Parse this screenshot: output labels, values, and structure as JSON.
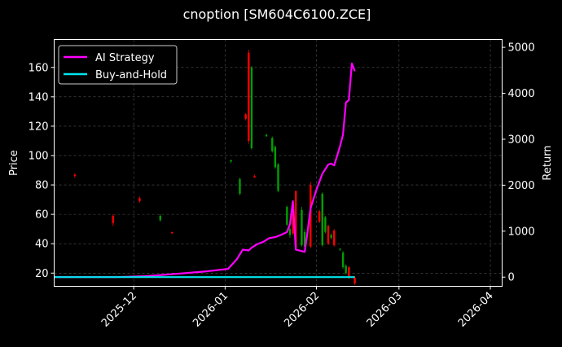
{
  "chart_data": {
    "type": "line",
    "title": "cnoption [SM604C6100.ZCE]",
    "xlabel": "",
    "ylabel": "Price",
    "y2label": "Return",
    "x_ticks": [
      "2025-12",
      "2026-01",
      "2026-02",
      "2026-03",
      "2026-04"
    ],
    "xlim": [
      "2025-11-04",
      "2026-04-05"
    ],
    "ylim": [
      11,
      179
    ],
    "y_ticks": [
      20,
      40,
      60,
      80,
      100,
      120,
      140,
      160
    ],
    "y2lim": [
      -200,
      5170
    ],
    "y2_ticks": [
      0,
      1000,
      2000,
      3000,
      4000,
      5000
    ],
    "grid": true,
    "legend_position": "top-left",
    "colors": {
      "background": "#000000",
      "grid": "#555555",
      "ai_strategy": "#ff00ff",
      "buy_and_hold": "#00e5ee",
      "candle_up": "#00a000",
      "candle_down": "#ff0000"
    },
    "series": [
      {
        "name": "AI Strategy",
        "axis": "right",
        "x": [
          "2025-11-04",
          "2025-11-15",
          "2025-11-25",
          "2025-12-05",
          "2025-12-15",
          "2025-12-25",
          "2026-01-02",
          "2026-01-05",
          "2026-01-07",
          "2026-01-09",
          "2026-01-10",
          "2026-01-12",
          "2026-01-14",
          "2026-01-16",
          "2026-01-18",
          "2026-01-20",
          "2026-01-22",
          "2026-01-23",
          "2026-01-24",
          "2026-01-25",
          "2026-01-28",
          "2026-01-29",
          "2026-01-30",
          "2026-02-01",
          "2026-02-03",
          "2026-02-05",
          "2026-02-06",
          "2026-02-07",
          "2026-02-09",
          "2026-02-10",
          "2026-02-11",
          "2026-02-12",
          "2026-02-13",
          "2026-02-14"
        ],
        "values": [
          0,
          0,
          0,
          20,
          70,
          120,
          180,
          390,
          600,
          580,
          640,
          720,
          770,
          850,
          870,
          920,
          980,
          1150,
          1650,
          600,
          550,
          1000,
          1500,
          1900,
          2250,
          2450,
          2470,
          2430,
          2850,
          3100,
          3800,
          3850,
          4650,
          4480
        ]
      },
      {
        "name": "Buy-and-Hold",
        "axis": "right",
        "x": [
          "2025-11-04",
          "2026-02-14"
        ],
        "values": [
          0,
          0
        ]
      }
    ],
    "candles": [
      {
        "date": "2025-11-11",
        "open": 87,
        "close": 86,
        "high": 88,
        "low": 85
      },
      {
        "date": "2025-11-24",
        "open": 59,
        "close": 54,
        "high": 60,
        "low": 52
      },
      {
        "date": "2025-12-03",
        "open": 71,
        "close": 69,
        "high": 72,
        "low": 68
      },
      {
        "date": "2025-12-10",
        "open": 56,
        "close": 59,
        "high": 60,
        "low": 55
      },
      {
        "date": "2025-12-14",
        "open": 48,
        "close": 47,
        "high": 48,
        "low": 47
      },
      {
        "date": "2026-01-03",
        "open": 96,
        "close": 97,
        "high": 97,
        "low": 95
      },
      {
        "date": "2026-01-06",
        "open": 74,
        "close": 84,
        "high": 85,
        "low": 73
      },
      {
        "date": "2026-01-08",
        "open": 128,
        "close": 125,
        "high": 129,
        "low": 124
      },
      {
        "date": "2026-01-09",
        "open": 170,
        "close": 110,
        "high": 172,
        "low": 108
      },
      {
        "date": "2026-01-10",
        "open": 105,
        "close": 160,
        "high": 161,
        "low": 104
      },
      {
        "date": "2026-01-11",
        "open": 86,
        "close": 85,
        "high": 87,
        "low": 85
      },
      {
        "date": "2026-01-15",
        "open": 113,
        "close": 114,
        "high": 115,
        "low": 113
      },
      {
        "date": "2026-01-17",
        "open": 103,
        "close": 112,
        "high": 113,
        "low": 102
      },
      {
        "date": "2026-01-18",
        "open": 92,
        "close": 106,
        "high": 107,
        "low": 91
      },
      {
        "date": "2026-01-19",
        "open": 76,
        "close": 94,
        "high": 95,
        "low": 75
      },
      {
        "date": "2026-01-22",
        "open": 53,
        "close": 65,
        "high": 66,
        "low": 52
      },
      {
        "date": "2026-01-23",
        "open": 46,
        "close": 50,
        "high": 51,
        "low": 44
      },
      {
        "date": "2026-01-24",
        "open": 65,
        "close": 47,
        "high": 66,
        "low": 46
      },
      {
        "date": "2026-01-25",
        "open": 76,
        "close": 37,
        "high": 76,
        "low": 36
      },
      {
        "date": "2026-01-27",
        "open": 39,
        "close": 63,
        "high": 65,
        "low": 38
      },
      {
        "date": "2026-01-28",
        "open": 38,
        "close": 48,
        "high": 50,
        "low": 37
      },
      {
        "date": "2026-01-30",
        "open": 80,
        "close": 38,
        "high": 82,
        "low": 37
      },
      {
        "date": "2026-02-02",
        "open": 62,
        "close": 55,
        "high": 63,
        "low": 54
      },
      {
        "date": "2026-02-03",
        "open": 39,
        "close": 74,
        "high": 75,
        "low": 38
      },
      {
        "date": "2026-02-04",
        "open": 48,
        "close": 58,
        "high": 59,
        "low": 47
      },
      {
        "date": "2026-02-05",
        "open": 52,
        "close": 40,
        "high": 53,
        "low": 39
      },
      {
        "date": "2026-02-06",
        "open": 44,
        "close": 46,
        "high": 47,
        "low": 43
      },
      {
        "date": "2026-02-07",
        "open": 49,
        "close": 39,
        "high": 50,
        "low": 38
      },
      {
        "date": "2026-02-09",
        "open": 36,
        "close": 36.5,
        "high": 37,
        "low": 35
      },
      {
        "date": "2026-02-10",
        "open": 24,
        "close": 34,
        "high": 35,
        "low": 23
      },
      {
        "date": "2026-02-11",
        "open": 20,
        "close": 25,
        "high": 26,
        "low": 19
      },
      {
        "date": "2026-02-12",
        "open": 24,
        "close": 17,
        "high": 25,
        "low": 16
      },
      {
        "date": "2026-02-14",
        "open": 17,
        "close": 13,
        "high": 18,
        "low": 12
      }
    ]
  }
}
